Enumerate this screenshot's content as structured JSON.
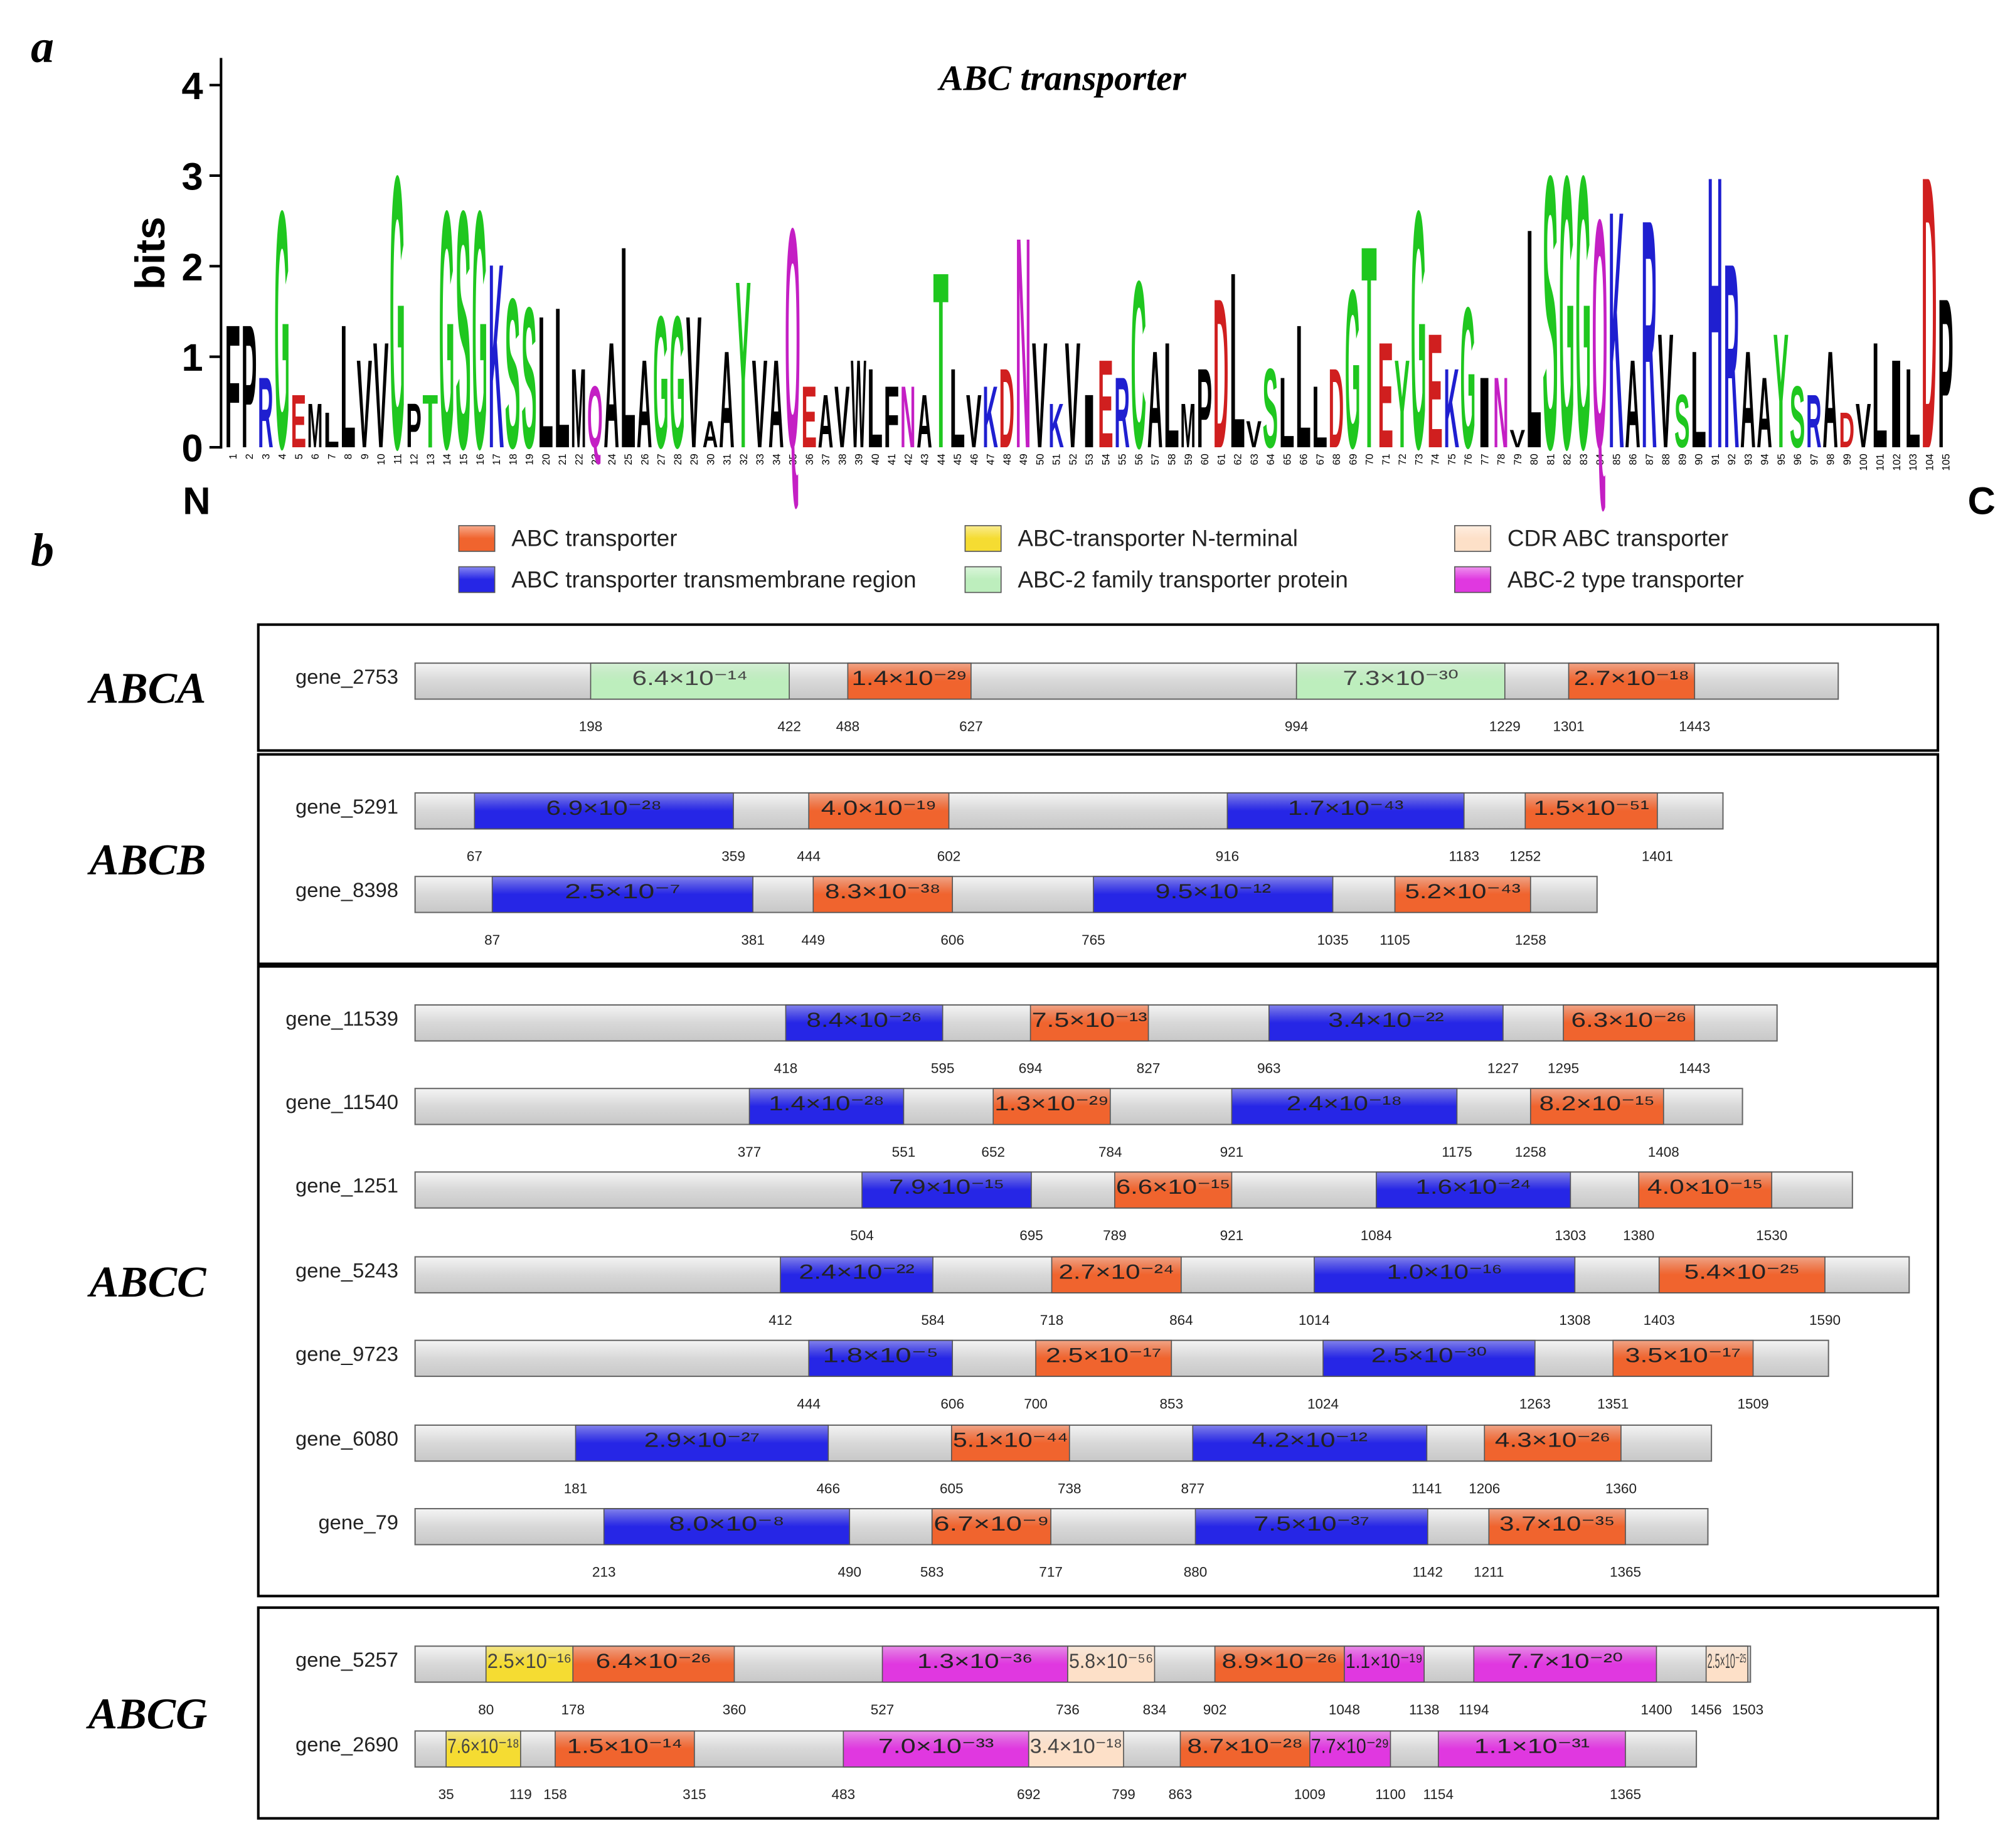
{
  "chart_data": [
    {
      "type": "logo",
      "panel_label": "a",
      "title": "ABC transporter",
      "ylabel": "bits",
      "n_label": "N",
      "c_label": "C",
      "ylim": [
        0,
        4.3
      ],
      "yticks": [
        0,
        1,
        2,
        3,
        4
      ],
      "x": [
        1,
        2,
        3,
        4,
        5,
        6,
        7,
        8,
        9,
        10,
        11,
        12,
        13,
        14,
        15,
        16,
        17,
        18,
        19,
        20,
        21,
        22,
        23,
        24,
        25,
        26,
        27,
        28,
        29,
        30,
        31,
        32,
        33,
        34,
        35,
        36,
        37,
        38,
        39,
        40,
        41,
        42,
        43,
        44,
        45,
        46,
        47,
        48,
        49,
        50,
        51,
        52,
        53,
        54,
        55,
        56,
        57,
        58,
        59,
        60,
        61,
        62,
        63,
        64,
        65,
        66,
        67,
        68,
        69,
        70,
        71,
        72,
        73,
        74,
        75,
        76,
        77,
        78,
        79,
        80,
        81,
        82,
        83,
        84,
        85,
        86,
        87,
        88,
        89,
        90,
        91,
        92,
        93,
        94,
        95,
        96,
        97,
        98,
        99,
        100,
        101,
        102,
        103,
        104,
        105
      ],
      "letters": [
        "F",
        "P",
        "R",
        "G",
        "E",
        "M",
        "L",
        "L",
        "V",
        "V",
        "G",
        "P",
        "T",
        "G",
        "S",
        "G",
        "K",
        "S",
        "S",
        "L",
        "L",
        "M",
        "Q",
        "A",
        "L",
        "A",
        "G",
        "G",
        "V",
        "A",
        "A",
        "Y",
        "V",
        "A",
        "Q",
        "E",
        "A",
        "V",
        "W",
        "L",
        "F",
        "N",
        "A",
        "T",
        "L",
        "V",
        "K",
        "D",
        "N",
        "V",
        "K",
        "V",
        "I",
        "E",
        "R",
        "C",
        "A",
        "L",
        "M",
        "P",
        "D",
        "L",
        "V",
        "S",
        "L",
        "L",
        "L",
        "D",
        "G",
        "T",
        "E",
        "Y",
        "G",
        "E",
        "K",
        "G",
        "I",
        "N",
        "V",
        "L",
        "S",
        "G",
        "G",
        "Q",
        "K",
        "A",
        "R",
        "V",
        "S",
        "L",
        "H",
        "R",
        "A",
        "A",
        "Y",
        "S",
        "R",
        "A",
        "D",
        "V",
        "L",
        "I",
        "L",
        "D",
        "P"
      ],
      "values": [
        1.4,
        1.4,
        0.8,
        2.7,
        0.6,
        0.5,
        0.4,
        1.4,
        1.0,
        1.2,
        3.1,
        0.5,
        0.6,
        2.7,
        2.7,
        2.7,
        2.1,
        1.7,
        1.6,
        1.5,
        1.6,
        0.9,
        0.7,
        1.2,
        2.3,
        1.0,
        1.5,
        1.5,
        1.5,
        0.3,
        1.1,
        1.9,
        1.0,
        1.0,
        2.5,
        0.7,
        0.6,
        0.7,
        1.0,
        0.9,
        0.7,
        0.7,
        0.6,
        2.0,
        0.9,
        0.6,
        0.7,
        0.9,
        2.4,
        1.2,
        0.5,
        1.2,
        0.6,
        1.0,
        0.8,
        1.9,
        1.1,
        1.2,
        0.5,
        0.9,
        1.7,
        2.0,
        0.3,
        0.9,
        0.8,
        1.4,
        0.7,
        0.9,
        1.8,
        2.3,
        1.2,
        1.0,
        2.7,
        1.3,
        0.9,
        1.6,
        0.8,
        0.8,
        0.2,
        2.5,
        3.1,
        3.1,
        3.1,
        2.6,
        2.7,
        1.0,
        2.6,
        1.3,
        0.6,
        1.1,
        3.1,
        2.1,
        1.1,
        0.8,
        1.3,
        0.7,
        0.6,
        1.1,
        0.4,
        0.5,
        1.2,
        1.0,
        0.9,
        3.1,
        1.7
      ],
      "letter_colors": {
        "G": "#1fc71f",
        "S": "#1fc71f",
        "T": "#1fc71f",
        "Y": "#1fc71f",
        "C": "#1fc71f",
        "N": "#c41fc4",
        "Q": "#c41fc4",
        "K": "#1f1fd0",
        "R": "#1f1fd0",
        "H": "#1f1fd0",
        "D": "#d01f1f",
        "E": "#d01f1f",
        "A": "#000000",
        "V": "#000000",
        "L": "#000000",
        "I": "#000000",
        "P": "#000000",
        "W": "#000000",
        "F": "#000000",
        "M": "#000000"
      }
    },
    {
      "type": "domain",
      "panel_label": "b",
      "legend": [
        {
          "name": "ABC transporter",
          "color": "#f0642e"
        },
        {
          "name": "ABC transporter transmembrane region",
          "color": "#2626e6"
        },
        {
          "name": "ABC-transporter N-terminal",
          "color": "#f5dc32"
        },
        {
          "name": "ABC-2 family transporter protein",
          "color": "#bdeebd"
        },
        {
          "name": "CDR ABC transporter",
          "color": "#fde0c8"
        },
        {
          "name": "ABC-2 type transporter",
          "color": "#e038e0"
        }
      ],
      "groups": [
        {
          "name": "ABCA",
          "genes": [
            {
              "name": "gene_2753",
              "length": 1605,
              "domains": [
                {
                  "start": 198,
                  "end": 422,
                  "evalue": "6.4×10⁻¹⁴",
                  "domain": 3
                },
                {
                  "start": 488,
                  "end": 627,
                  "evalue": "1.4×10⁻²⁹",
                  "domain": 0
                },
                {
                  "start": 994,
                  "end": 1229,
                  "evalue": "7.3×10⁻³⁰",
                  "domain": 3
                },
                {
                  "start": 1301,
                  "end": 1443,
                  "evalue": "2.7×10⁻¹⁸",
                  "domain": 0
                }
              ]
            }
          ]
        },
        {
          "name": "ABCB",
          "genes": [
            {
              "name": "gene_5291",
              "length": 1475,
              "domains": [
                {
                  "start": 67,
                  "end": 359,
                  "evalue": "6.9×10⁻²⁸",
                  "domain": 1
                },
                {
                  "start": 444,
                  "end": 602,
                  "evalue": "4.0×10⁻¹⁹",
                  "domain": 0
                },
                {
                  "start": 916,
                  "end": 1183,
                  "evalue": "1.7×10⁻⁴³",
                  "domain": 1
                },
                {
                  "start": 1252,
                  "end": 1401,
                  "evalue": "1.5×10⁻⁵¹",
                  "domain": 0
                }
              ]
            },
            {
              "name": "gene_8398",
              "length": 1333,
              "domains": [
                {
                  "start": 87,
                  "end": 381,
                  "evalue": "2.5×10⁻⁷",
                  "domain": 1
                },
                {
                  "start": 449,
                  "end": 606,
                  "evalue": "8.3×10⁻³⁸",
                  "domain": 0
                },
                {
                  "start": 765,
                  "end": 1035,
                  "evalue": "9.5×10⁻¹²",
                  "domain": 1
                },
                {
                  "start": 1105,
                  "end": 1258,
                  "evalue": "5.2×10⁻⁴³",
                  "domain": 0
                }
              ]
            }
          ]
        },
        {
          "name": "ABCC",
          "genes": [
            {
              "name": "gene_11539",
              "length": 1536,
              "domains": [
                {
                  "start": 418,
                  "end": 595,
                  "evalue": "8.4×10⁻²⁶",
                  "domain": 1
                },
                {
                  "start": 694,
                  "end": 827,
                  "evalue": "7.5×10⁻¹³",
                  "domain": 0
                },
                {
                  "start": 963,
                  "end": 1227,
                  "evalue": "3.4×10⁻²²",
                  "domain": 1
                },
                {
                  "start": 1295,
                  "end": 1443,
                  "evalue": "6.3×10⁻²⁶",
                  "domain": 0
                }
              ]
            },
            {
              "name": "gene_11540",
              "length": 1497,
              "domains": [
                {
                  "start": 377,
                  "end": 551,
                  "evalue": "1.4×10⁻²⁸",
                  "domain": 1
                },
                {
                  "start": 652,
                  "end": 784,
                  "evalue": "1.3×10⁻²⁹",
                  "domain": 0
                },
                {
                  "start": 921,
                  "end": 1175,
                  "evalue": "2.4×10⁻¹⁸",
                  "domain": 1
                },
                {
                  "start": 1258,
                  "end": 1408,
                  "evalue": "8.2×10⁻¹⁵",
                  "domain": 0
                }
              ]
            },
            {
              "name": "gene_1251",
              "length": 1621,
              "domains": [
                {
                  "start": 504,
                  "end": 695,
                  "evalue": "7.9×10⁻¹⁵",
                  "domain": 1
                },
                {
                  "start": 789,
                  "end": 921,
                  "evalue": "6.6×10⁻¹⁵",
                  "domain": 0
                },
                {
                  "start": 1084,
                  "end": 1303,
                  "evalue": "1.6×10⁻²⁴",
                  "domain": 1
                },
                {
                  "start": 1380,
                  "end": 1530,
                  "evalue": "4.0×10⁻¹⁵",
                  "domain": 0
                }
              ]
            },
            {
              "name": "gene_5243",
              "length": 1685,
              "domains": [
                {
                  "start": 412,
                  "end": 584,
                  "evalue": "2.4×10⁻²²",
                  "domain": 1
                },
                {
                  "start": 718,
                  "end": 864,
                  "evalue": "2.7×10⁻²⁴",
                  "domain": 0
                },
                {
                  "start": 1014,
                  "end": 1308,
                  "evalue": "1.0×10⁻¹⁶",
                  "domain": 1
                },
                {
                  "start": 1403,
                  "end": 1590,
                  "evalue": "5.4×10⁻²⁵",
                  "domain": 0
                }
              ]
            },
            {
              "name": "gene_9723",
              "length": 1594,
              "domains": [
                {
                  "start": 444,
                  "end": 606,
                  "evalue": "1.8×10⁻⁵",
                  "domain": 1
                },
                {
                  "start": 700,
                  "end": 853,
                  "evalue": "2.5×10⁻¹⁷",
                  "domain": 0
                },
                {
                  "start": 1024,
                  "end": 1263,
                  "evalue": "2.5×10⁻³⁰",
                  "domain": 1
                },
                {
                  "start": 1351,
                  "end": 1509,
                  "evalue": "3.5×10⁻¹⁷",
                  "domain": 0
                }
              ]
            },
            {
              "name": "gene_6080",
              "length": 1462,
              "domains": [
                {
                  "start": 181,
                  "end": 466,
                  "evalue": "2.9×10⁻²⁷",
                  "domain": 1
                },
                {
                  "start": 605,
                  "end": 738,
                  "evalue": "5.1×10⁻⁴⁴",
                  "domain": 0
                },
                {
                  "start": 877,
                  "end": 1141,
                  "evalue": "4.2×10⁻¹²",
                  "domain": 1
                },
                {
                  "start": 1206,
                  "end": 1360,
                  "evalue": "4.3×10⁻²⁶",
                  "domain": 0
                }
              ]
            },
            {
              "name": "gene_79",
              "length": 1458,
              "domains": [
                {
                  "start": 213,
                  "end": 490,
                  "evalue": "8.0×10⁻⁸",
                  "domain": 1
                },
                {
                  "start": 583,
                  "end": 717,
                  "evalue": "6.7×10⁻⁹",
                  "domain": 0
                },
                {
                  "start": 880,
                  "end": 1142,
                  "evalue": "7.5×10⁻³⁷",
                  "domain": 1
                },
                {
                  "start": 1211,
                  "end": 1365,
                  "evalue": "3.7×10⁻³⁵",
                  "domain": 0
                }
              ]
            }
          ]
        },
        {
          "name": "ABCG",
          "genes": [
            {
              "name": "gene_5257",
              "length": 1506,
              "domains": [
                {
                  "start": 80,
                  "end": 178,
                  "evalue": "2.5×10⁻¹⁶",
                  "domain": 2
                },
                {
                  "start": 178,
                  "end": 360,
                  "evalue": "6.4×10⁻²⁶",
                  "domain": 0
                },
                {
                  "start": 527,
                  "end": 736,
                  "evalue": "1.3×10⁻³⁶",
                  "domain": 5
                },
                {
                  "start": 736,
                  "end": 834,
                  "evalue": "5.8×10⁻⁵⁶",
                  "domain": 4
                },
                {
                  "start": 902,
                  "end": 1048,
                  "evalue": "8.9×10⁻²⁶",
                  "domain": 0
                },
                {
                  "start": 1048,
                  "end": 1138,
                  "evalue": "1.1×10⁻¹⁹",
                  "domain": 5
                },
                {
                  "start": 1194,
                  "end": 1400,
                  "evalue": "7.7×10⁻²⁰",
                  "domain": 5
                },
                {
                  "start": 1456,
                  "end": 1503,
                  "evalue": "2.5×10⁻²⁵",
                  "domain": 4
                }
              ]
            },
            {
              "name": "gene_2690",
              "length": 1445,
              "domains": [
                {
                  "start": 35,
                  "end": 119,
                  "evalue": "7.6×10⁻¹⁸",
                  "domain": 2
                },
                {
                  "start": 158,
                  "end": 315,
                  "evalue": "1.5×10⁻¹⁴",
                  "domain": 0
                },
                {
                  "start": 483,
                  "end": 692,
                  "evalue": "7.0×10⁻³³",
                  "domain": 5
                },
                {
                  "start": 692,
                  "end": 799,
                  "evalue": "3.4×10⁻¹⁸",
                  "domain": 4
                },
                {
                  "start": 863,
                  "end": 1009,
                  "evalue": "8.7×10⁻²⁸",
                  "domain": 0
                },
                {
                  "start": 1009,
                  "end": 1100,
                  "evalue": "7.7×10⁻²⁹",
                  "domain": 5
                },
                {
                  "start": 1154,
                  "end": 1365,
                  "evalue": "1.1×10⁻³¹",
                  "domain": 5
                }
              ]
            }
          ]
        }
      ]
    }
  ]
}
